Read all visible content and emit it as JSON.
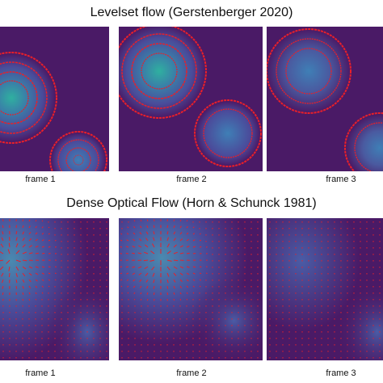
{
  "top": {
    "title": "Levelset flow (Gerstenberger 2020)",
    "captions": [
      "frame 1",
      "frame 2",
      "frame 3"
    ]
  },
  "bottom": {
    "title": "Dense Optical Flow (Horn & Schunck 1981)",
    "captions": [
      "frame 1",
      "frame 2",
      "frame 3"
    ]
  },
  "colors": {
    "background": "#4a1a66",
    "blob_teal": "#2fa59a",
    "blob_blue": "#3f5ea8",
    "contour_red": "#e8202a",
    "vector_red": "#e8202a"
  }
}
